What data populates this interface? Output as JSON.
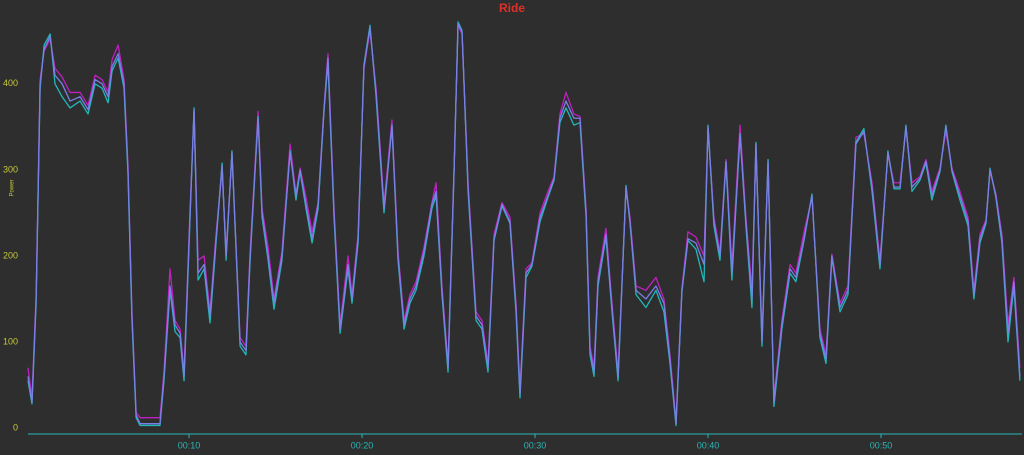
{
  "chart_data": {
    "type": "line",
    "title": "Ride",
    "y_label": "Power",
    "x": [
      0.69,
      0.92,
      1.16,
      1.39,
      1.62,
      1.97,
      2.25,
      2.66,
      3.12,
      3.7,
      4.16,
      4.57,
      4.97,
      5.32,
      5.55,
      5.9,
      6.24,
      6.47,
      6.7,
      6.94,
      7.17,
      7.75,
      8.32,
      8.55,
      8.9,
      9.19,
      9.48,
      9.71,
      10.06,
      10.29,
      10.52,
      10.87,
      11.21,
      11.56,
      11.91,
      12.14,
      12.48,
      12.95,
      13.29,
      13.53,
      13.99,
      14.22,
      14.57,
      14.91,
      15.37,
      15.84,
      16.18,
      16.42,
      16.76,
      17.11,
      17.46,
      17.8,
      18.03,
      18.38,
      18.73,
      19.19,
      19.42,
      19.77,
      20.11,
      20.46,
      20.81,
      21.27,
      21.73,
      22.08,
      22.43,
      22.77,
      23.12,
      23.58,
      24.04,
      24.28,
      24.62,
      24.97,
      25.32,
      25.55,
      25.78,
      26.13,
      26.59,
      26.93,
      27.28,
      27.63,
      28.09,
      28.55,
      28.9,
      29.13,
      29.48,
      29.82,
      30.29,
      30.75,
      31.1,
      31.44,
      31.79,
      32.25,
      32.6,
      32.95,
      33.18,
      33.41,
      33.64,
      34.1,
      34.45,
      34.8,
      35.26,
      35.49,
      35.84,
      36.41,
      36.99,
      37.45,
      37.8,
      38.15,
      38.49,
      38.84,
      39.3,
      39.77,
      40.0,
      40.34,
      40.69,
      41.04,
      41.38,
      41.85,
      42.19,
      42.54,
      42.77,
      43.12,
      43.47,
      43.81,
      44.27,
      44.74,
      45.08,
      45.55,
      46.01,
      46.47,
      46.82,
      47.16,
      47.63,
      48.09,
      48.55,
      49.01,
      49.48,
      49.94,
      50.4,
      50.75,
      51.1,
      51.44,
      51.79,
      52.25,
      52.6,
      52.94,
      53.41,
      53.75,
      54.1,
      54.56,
      55.03,
      55.37,
      55.72,
      56.07,
      56.3,
      56.64,
      56.99,
      57.34,
      57.68,
      58.03
    ],
    "series": [
      {
        "color": "#c020c0",
        "values": [
          70,
          35,
          155,
          405,
          438,
          452,
          418,
          408,
          390,
          390,
          375,
          410,
          405,
          390,
          428,
          445,
          405,
          305,
          135,
          18,
          12,
          12,
          12,
          65,
          185,
          125,
          115,
          65,
          255,
          368,
          195,
          200,
          135,
          225,
          300,
          205,
          318,
          105,
          95,
          205,
          368,
          255,
          210,
          150,
          205,
          330,
          272,
          302,
          268,
          228,
          262,
          372,
          435,
          255,
          120,
          200,
          155,
          225,
          418,
          462,
          395,
          260,
          358,
          205,
          125,
          155,
          170,
          210,
          262,
          285,
          165,
          75,
          302,
          468,
          458,
          285,
          135,
          125,
          75,
          225,
          262,
          245,
          145,
          45,
          185,
          192,
          250,
          275,
          292,
          365,
          390,
          365,
          362,
          255,
          95,
          70,
          175,
          232,
          145,
          65,
          278,
          245,
          165,
          160,
          175,
          150,
          85,
          8,
          162,
          228,
          222,
          200,
          348,
          245,
          205,
          312,
          188,
          352,
          245,
          160,
          328,
          105,
          308,
          35,
          125,
          190,
          180,
          228,
          268,
          115,
          85,
          202,
          145,
          165,
          338,
          342,
          285,
          195,
          318,
          285,
          285,
          348,
          285,
          292,
          312,
          275,
          302,
          345,
          302,
          275,
          245,
          160,
          225,
          242,
          298,
          272,
          225,
          120,
          175,
          70
        ]
      },
      {
        "color": "#20b8b8",
        "values": [
          55,
          28,
          145,
          395,
          445,
          458,
          400,
          385,
          372,
          380,
          365,
          400,
          395,
          378,
          415,
          430,
          395,
          295,
          125,
          12,
          3,
          3,
          3,
          55,
          160,
          112,
          105,
          55,
          245,
          372,
          172,
          185,
          122,
          215,
          308,
          195,
          322,
          95,
          85,
          195,
          362,
          245,
          195,
          138,
          195,
          322,
          265,
          298,
          255,
          215,
          255,
          368,
          425,
          245,
          110,
          185,
          145,
          215,
          422,
          468,
          385,
          250,
          352,
          195,
          115,
          145,
          160,
          200,
          255,
          270,
          155,
          65,
          298,
          472,
          462,
          275,
          125,
          115,
          65,
          218,
          258,
          238,
          135,
          35,
          175,
          188,
          240,
          268,
          288,
          355,
          372,
          352,
          355,
          245,
          85,
          60,
          165,
          222,
          135,
          55,
          282,
          238,
          155,
          140,
          160,
          135,
          75,
          3,
          158,
          218,
          208,
          170,
          352,
          235,
          195,
          308,
          172,
          342,
          235,
          140,
          332,
          95,
          312,
          25,
          115,
          180,
          170,
          218,
          272,
          105,
          75,
          198,
          135,
          155,
          332,
          348,
          275,
          185,
          322,
          278,
          278,
          352,
          275,
          288,
          308,
          265,
          298,
          352,
          298,
          265,
          235,
          150,
          215,
          238,
          302,
          268,
          215,
          100,
          165,
          55
        ]
      },
      {
        "color": "#7a7fe6",
        "values": [
          60,
          30,
          150,
          400,
          440,
          455,
          410,
          400,
          380,
          385,
          370,
          405,
          400,
          385,
          420,
          435,
          400,
          300,
          130,
          15,
          5,
          5,
          5,
          60,
          165,
          120,
          110,
          60,
          250,
          370,
          180,
          190,
          130,
          220,
          305,
          200,
          320,
          100,
          90,
          200,
          360,
          250,
          200,
          145,
          200,
          320,
          270,
          300,
          260,
          220,
          260,
          370,
          430,
          250,
          115,
          190,
          150,
          220,
          420,
          465,
          390,
          255,
          350,
          200,
          120,
          150,
          165,
          205,
          260,
          275,
          160,
          70,
          300,
          470,
          460,
          280,
          130,
          120,
          70,
          220,
          260,
          240,
          140,
          40,
          180,
          190,
          245,
          270,
          290,
          360,
          380,
          360,
          360,
          250,
          90,
          65,
          170,
          225,
          140,
          60,
          280,
          240,
          160,
          150,
          165,
          145,
          80,
          5,
          160,
          220,
          215,
          190,
          350,
          240,
          200,
          310,
          180,
          340,
          240,
          150,
          330,
          100,
          310,
          30,
          120,
          185,
          175,
          220,
          270,
          110,
          80,
          200,
          140,
          160,
          330,
          345,
          280,
          190,
          320,
          280,
          280,
          350,
          280,
          290,
          310,
          270,
          300,
          350,
          300,
          270,
          240,
          155,
          220,
          240,
          300,
          270,
          220,
          110,
          170,
          60
        ]
      }
    ],
    "xlim": [
      0.69,
      58.15
    ],
    "xticks": [
      {
        "value": 10,
        "label": "00:10"
      },
      {
        "value": 20,
        "label": "00:20"
      },
      {
        "value": 30,
        "label": "00:30"
      },
      {
        "value": 40,
        "label": "00:40"
      },
      {
        "value": 50,
        "label": "00:50"
      }
    ],
    "ylim": [
      0,
      480
    ],
    "yticks": [
      0,
      100,
      200,
      300,
      400
    ]
  }
}
